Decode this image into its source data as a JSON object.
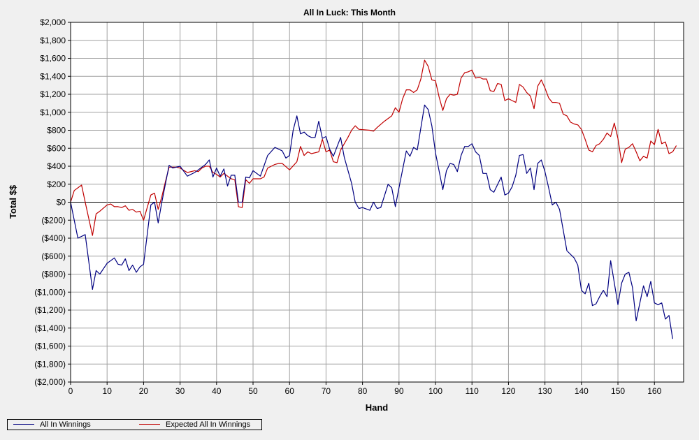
{
  "chart_data": {
    "type": "line",
    "title": "All In Luck: This Month",
    "xlabel": "Hand",
    "ylabel": "Total $$",
    "xlim": [
      0,
      168
    ],
    "ylim": [
      -2000,
      2000
    ],
    "x_ticks": [
      "0",
      "10",
      "20",
      "30",
      "40",
      "50",
      "60",
      "70",
      "80",
      "90",
      "100",
      "110",
      "120",
      "130",
      "140",
      "150",
      "160"
    ],
    "y_ticks": [
      "$2,000",
      "$1,800",
      "$1,600",
      "$1,400",
      "$1,200",
      "$1,000",
      "$800",
      "$600",
      "$400",
      "$200",
      "$0",
      "($200)",
      "($400)",
      "($600)",
      "($800)",
      "($1,000)",
      "($1,200)",
      "($1,400)",
      "($1,600)",
      "($1,800)",
      "($2,000)"
    ],
    "grid": true,
    "legend_position": "bottom-left",
    "series": [
      {
        "name": "All In Winnings",
        "color": "#000080",
        "points": [
          [
            0,
            0
          ],
          [
            2,
            -400
          ],
          [
            4,
            -360
          ],
          [
            6,
            -970
          ],
          [
            7,
            -760
          ],
          [
            8,
            -800
          ],
          [
            10,
            -680
          ],
          [
            12,
            -620
          ],
          [
            13,
            -690
          ],
          [
            14,
            -700
          ],
          [
            15,
            -630
          ],
          [
            16,
            -760
          ],
          [
            17,
            -700
          ],
          [
            18,
            -780
          ],
          [
            19,
            -720
          ],
          [
            20,
            -690
          ],
          [
            22,
            -30
          ],
          [
            23,
            0
          ],
          [
            24,
            -230
          ],
          [
            25,
            0
          ],
          [
            27,
            410
          ],
          [
            28,
            380
          ],
          [
            30,
            400
          ],
          [
            32,
            290
          ],
          [
            34,
            330
          ],
          [
            35,
            360
          ],
          [
            37,
            420
          ],
          [
            38,
            470
          ],
          [
            39,
            280
          ],
          [
            40,
            380
          ],
          [
            41,
            290
          ],
          [
            42,
            370
          ],
          [
            43,
            180
          ],
          [
            44,
            300
          ],
          [
            45,
            300
          ],
          [
            46,
            0
          ],
          [
            47,
            0
          ],
          [
            48,
            280
          ],
          [
            49,
            270
          ],
          [
            50,
            350
          ],
          [
            52,
            290
          ],
          [
            54,
            520
          ],
          [
            56,
            610
          ],
          [
            58,
            570
          ],
          [
            59,
            490
          ],
          [
            60,
            520
          ],
          [
            61,
            800
          ],
          [
            62,
            960
          ],
          [
            63,
            760
          ],
          [
            64,
            780
          ],
          [
            65,
            740
          ],
          [
            66,
            720
          ],
          [
            67,
            720
          ],
          [
            68,
            900
          ],
          [
            69,
            710
          ],
          [
            70,
            730
          ],
          [
            71,
            590
          ],
          [
            72,
            510
          ],
          [
            74,
            720
          ],
          [
            75,
            500
          ],
          [
            77,
            210
          ],
          [
            78,
            0
          ],
          [
            79,
            -70
          ],
          [
            80,
            -60
          ],
          [
            82,
            -90
          ],
          [
            83,
            0
          ],
          [
            84,
            -70
          ],
          [
            85,
            -60
          ],
          [
            87,
            200
          ],
          [
            88,
            160
          ],
          [
            89,
            -50
          ],
          [
            90,
            160
          ],
          [
            92,
            570
          ],
          [
            93,
            510
          ],
          [
            94,
            610
          ],
          [
            95,
            580
          ],
          [
            97,
            1080
          ],
          [
            98,
            1030
          ],
          [
            99,
            850
          ],
          [
            100,
            550
          ],
          [
            102,
            140
          ],
          [
            103,
            350
          ],
          [
            104,
            430
          ],
          [
            105,
            420
          ],
          [
            106,
            340
          ],
          [
            107,
            520
          ],
          [
            108,
            620
          ],
          [
            109,
            620
          ],
          [
            110,
            650
          ],
          [
            111,
            560
          ],
          [
            112,
            520
          ],
          [
            113,
            320
          ],
          [
            114,
            320
          ],
          [
            115,
            140
          ],
          [
            116,
            110
          ],
          [
            118,
            280
          ],
          [
            119,
            80
          ],
          [
            120,
            100
          ],
          [
            121,
            170
          ],
          [
            122,
            300
          ],
          [
            123,
            520
          ],
          [
            124,
            530
          ],
          [
            125,
            320
          ],
          [
            126,
            380
          ],
          [
            127,
            140
          ],
          [
            128,
            430
          ],
          [
            129,
            470
          ],
          [
            130,
            340
          ],
          [
            131,
            160
          ],
          [
            132,
            -30
          ],
          [
            133,
            0
          ],
          [
            134,
            -80
          ],
          [
            136,
            -540
          ],
          [
            138,
            -620
          ],
          [
            139,
            -700
          ],
          [
            140,
            -980
          ],
          [
            141,
            -1020
          ],
          [
            142,
            -900
          ],
          [
            143,
            -1150
          ],
          [
            144,
            -1130
          ],
          [
            145,
            -1050
          ],
          [
            146,
            -980
          ],
          [
            147,
            -1050
          ],
          [
            148,
            -650
          ],
          [
            150,
            -1140
          ],
          [
            151,
            -900
          ],
          [
            152,
            -800
          ],
          [
            153,
            -780
          ],
          [
            154,
            -950
          ],
          [
            155,
            -1320
          ],
          [
            156,
            -1120
          ],
          [
            157,
            -930
          ],
          [
            158,
            -1050
          ],
          [
            159,
            -880
          ],
          [
            160,
            -1120
          ],
          [
            161,
            -1140
          ],
          [
            162,
            -1120
          ],
          [
            163,
            -1300
          ],
          [
            164,
            -1260
          ],
          [
            165,
            -1520
          ]
        ]
      },
      {
        "name": "Expected All In Winnings",
        "color": "#c00000",
        "points": [
          [
            0,
            0
          ],
          [
            1,
            130
          ],
          [
            3,
            190
          ],
          [
            4,
            0
          ],
          [
            6,
            -370
          ],
          [
            7,
            -130
          ],
          [
            8,
            -100
          ],
          [
            10,
            -30
          ],
          [
            11,
            -20
          ],
          [
            12,
            -50
          ],
          [
            13,
            -50
          ],
          [
            14,
            -60
          ],
          [
            15,
            -40
          ],
          [
            16,
            -90
          ],
          [
            17,
            -80
          ],
          [
            18,
            -110
          ],
          [
            19,
            -100
          ],
          [
            20,
            -200
          ],
          [
            21,
            -60
          ],
          [
            22,
            80
          ],
          [
            23,
            100
          ],
          [
            24,
            -80
          ],
          [
            25,
            60
          ],
          [
            26,
            230
          ],
          [
            27,
            390
          ],
          [
            28,
            390
          ],
          [
            29,
            390
          ],
          [
            30,
            380
          ],
          [
            32,
            330
          ],
          [
            34,
            350
          ],
          [
            35,
            340
          ],
          [
            36,
            380
          ],
          [
            37,
            400
          ],
          [
            38,
            400
          ],
          [
            39,
            330
          ],
          [
            40,
            310
          ],
          [
            41,
            280
          ],
          [
            42,
            320
          ],
          [
            44,
            260
          ],
          [
            45,
            250
          ],
          [
            46,
            -50
          ],
          [
            47,
            -60
          ],
          [
            48,
            250
          ],
          [
            49,
            210
          ],
          [
            50,
            260
          ],
          [
            52,
            260
          ],
          [
            53,
            280
          ],
          [
            54,
            380
          ],
          [
            56,
            420
          ],
          [
            57,
            430
          ],
          [
            58,
            430
          ],
          [
            60,
            360
          ],
          [
            62,
            450
          ],
          [
            63,
            620
          ],
          [
            64,
            520
          ],
          [
            65,
            560
          ],
          [
            66,
            540
          ],
          [
            68,
            560
          ],
          [
            69,
            700
          ],
          [
            70,
            560
          ],
          [
            71,
            580
          ],
          [
            72,
            450
          ],
          [
            73,
            440
          ],
          [
            74,
            580
          ],
          [
            76,
            720
          ],
          [
            77,
            800
          ],
          [
            78,
            850
          ],
          [
            79,
            810
          ],
          [
            82,
            800
          ],
          [
            83,
            790
          ],
          [
            84,
            830
          ],
          [
            86,
            900
          ],
          [
            88,
            960
          ],
          [
            89,
            1050
          ],
          [
            90,
            1000
          ],
          [
            91,
            1150
          ],
          [
            92,
            1250
          ],
          [
            93,
            1250
          ],
          [
            94,
            1220
          ],
          [
            95,
            1250
          ],
          [
            96,
            1370
          ],
          [
            97,
            1580
          ],
          [
            98,
            1510
          ],
          [
            99,
            1360
          ],
          [
            100,
            1350
          ],
          [
            101,
            1170
          ],
          [
            102,
            1020
          ],
          [
            103,
            1150
          ],
          [
            104,
            1200
          ],
          [
            105,
            1190
          ],
          [
            106,
            1200
          ],
          [
            107,
            1380
          ],
          [
            108,
            1440
          ],
          [
            109,
            1450
          ],
          [
            110,
            1470
          ],
          [
            111,
            1380
          ],
          [
            112,
            1390
          ],
          [
            113,
            1370
          ],
          [
            114,
            1370
          ],
          [
            115,
            1240
          ],
          [
            116,
            1230
          ],
          [
            117,
            1320
          ],
          [
            118,
            1310
          ],
          [
            119,
            1130
          ],
          [
            120,
            1150
          ],
          [
            121,
            1130
          ],
          [
            122,
            1110
          ],
          [
            123,
            1310
          ],
          [
            124,
            1280
          ],
          [
            125,
            1220
          ],
          [
            126,
            1180
          ],
          [
            127,
            1040
          ],
          [
            128,
            1290
          ],
          [
            129,
            1360
          ],
          [
            130,
            1270
          ],
          [
            131,
            1160
          ],
          [
            132,
            1110
          ],
          [
            133,
            1110
          ],
          [
            134,
            1100
          ],
          [
            135,
            980
          ],
          [
            136,
            960
          ],
          [
            137,
            890
          ],
          [
            138,
            870
          ],
          [
            139,
            860
          ],
          [
            140,
            810
          ],
          [
            141,
            700
          ],
          [
            142,
            580
          ],
          [
            143,
            560
          ],
          [
            144,
            630
          ],
          [
            145,
            650
          ],
          [
            146,
            700
          ],
          [
            147,
            770
          ],
          [
            148,
            730
          ],
          [
            149,
            880
          ],
          [
            150,
            710
          ],
          [
            151,
            440
          ],
          [
            152,
            590
          ],
          [
            153,
            610
          ],
          [
            154,
            650
          ],
          [
            155,
            560
          ],
          [
            156,
            460
          ],
          [
            157,
            510
          ],
          [
            158,
            490
          ],
          [
            159,
            680
          ],
          [
            160,
            640
          ],
          [
            161,
            810
          ],
          [
            162,
            650
          ],
          [
            163,
            670
          ],
          [
            164,
            540
          ],
          [
            165,
            560
          ],
          [
            166,
            630
          ]
        ]
      }
    ]
  }
}
